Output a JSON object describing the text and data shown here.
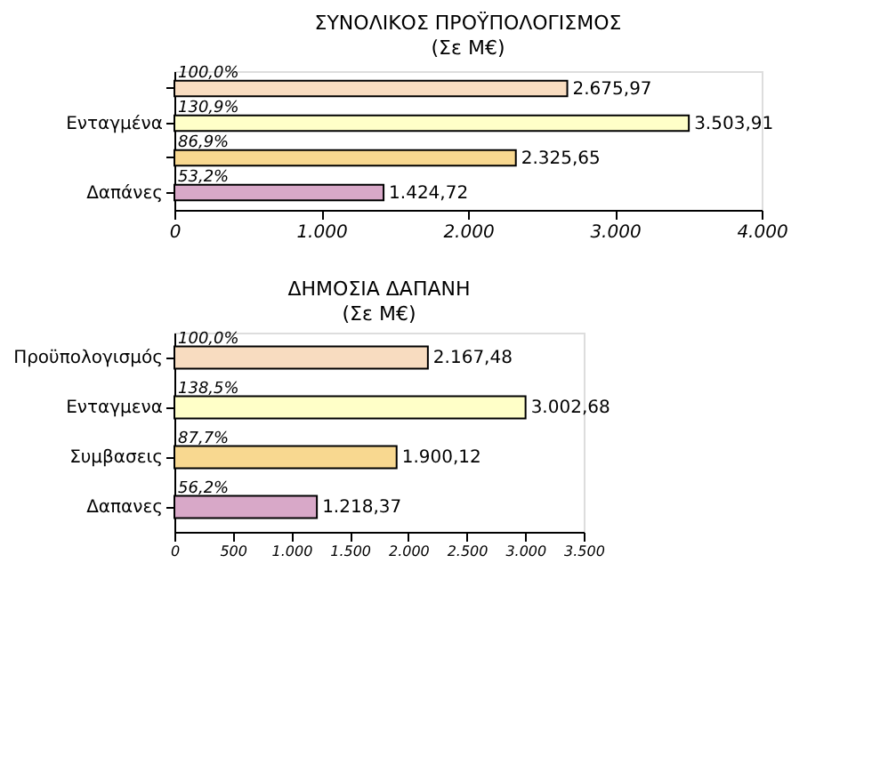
{
  "chart_data": [
    {
      "type": "bar",
      "orientation": "horizontal",
      "title": "ΣΥΝΟΛΙΚΟΣ ΠΡΟΫΠΟΛΟΓΙΣΜΟΣ",
      "subtitle": "(Σε Μ€)",
      "categories": [
        null,
        "Ενταγμένα",
        null,
        "Δαπάνες"
      ],
      "values": [
        2675.97,
        3503.91,
        2325.65,
        1424.72
      ],
      "colors": [
        "#f8dcc0",
        "#ffffc8",
        "#f8d890",
        "#d8a8c8"
      ],
      "value_labels": [
        "2.675,97",
        "3.503,91",
        "2.325,65",
        "1.424,72"
      ],
      "annotations": [
        "100,0%",
        "130,9%",
        "86,9%",
        "53,2%"
      ],
      "xlim": [
        0,
        4000
      ],
      "xticks": [
        0,
        {
          "value": 1000,
          "label": "1.000"
        },
        {
          "value": 2000,
          "label": "2.000"
        },
        {
          "value": 3000,
          "label": "3.000"
        },
        {
          "value": 4000,
          "label": "4.000"
        }
      ],
      "grid": false
    },
    {
      "type": "bar",
      "orientation": "horizontal",
      "title": "ΔΗΜΟΣΙΑ ΔΑΠΑΝΗ",
      "subtitle": "(Σε Μ€)",
      "categories": [
        "Προϋπολογισμός",
        "Ενταγμενα",
        "Συμβασεις",
        "Δαπανες"
      ],
      "values": [
        2167.48,
        3002.68,
        1900.12,
        1218.37
      ],
      "colors": [
        "#f8dcc0",
        "#ffffc8",
        "#f8d890",
        "#d8a8c8"
      ],
      "value_labels": [
        "2.167,48",
        "3.002,68",
        "1.900,12",
        "1.218,37"
      ],
      "annotations": [
        "100,0%",
        "138,5%",
        "87,7%",
        "56,2%"
      ],
      "xlim": [
        0,
        3500
      ],
      "xticks": [
        0,
        500,
        {
          "value": 1000,
          "label": "1.000"
        },
        {
          "value": 1500,
          "label": "1.500"
        },
        {
          "value": 2000,
          "label": "2.000"
        },
        {
          "value": 2500,
          "label": "2.500"
        },
        {
          "value": 3000,
          "label": "3.000"
        },
        {
          "value": 3500,
          "label": "3.500"
        }
      ],
      "grid": false
    }
  ]
}
